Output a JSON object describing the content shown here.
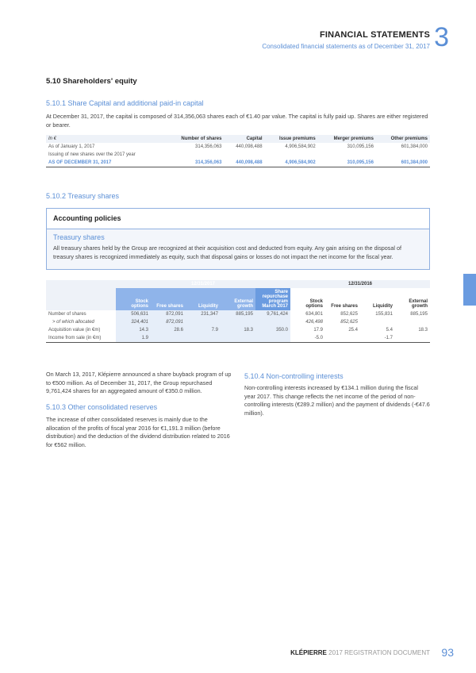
{
  "header": {
    "title": "FINANCIAL STATEMENTS",
    "subtitle": "Consolidated financial statements as of December 31, 2017",
    "chapter": "3"
  },
  "s510": {
    "title": "5.10  Shareholders' equity"
  },
  "s5101": {
    "title": "5.10.1  Share Capital and additional paid-in capital",
    "text": "At December 31, 2017, the capital is composed of 314,356,063 shares each of €1.40 par value. The capital is fully paid up. Shares are either registered or bearer."
  },
  "table1": {
    "headers": [
      "In €",
      "Number of shares",
      "Capital",
      "Issue premiums",
      "Merger premiums",
      "Other premiums"
    ],
    "rows": [
      [
        "As of January 1, 2017",
        "314,356,063",
        "440,098,488",
        "4,906,584,902",
        "310,095,156",
        "601,384,000"
      ],
      [
        "Issuing of new shares over the 2017 year",
        "",
        "",
        "",
        "",
        ""
      ]
    ],
    "total": [
      "AS OF DECEMBER 31, 2017",
      "314,356,063",
      "440,098,488",
      "4,906,584,902",
      "310,095,156",
      "601,384,000"
    ]
  },
  "s5102": {
    "title": "5.10.2  Treasury shares"
  },
  "policies": {
    "title": "Accounting policies",
    "subtitle": "Treasury shares",
    "text": "All treasury shares held by the Group are recognized at their acquisition cost and deducted from equity. Any gain arising on the disposal of treasury shares is recognized immediately as equity, such that disposal gains or losses do not impact the net income for the fiscal year."
  },
  "table2": {
    "period1": "12/31/2017",
    "period2": "12/31/2016",
    "headers": [
      "Stock options",
      "Free shares",
      "Liquidity",
      "External growth",
      "Share repurchase program March 2017",
      "Stock options",
      "Free shares",
      "Liquidity",
      "External growth"
    ],
    "rows": [
      [
        "Number of shares",
        "506,631",
        "872,091",
        "231,347",
        "885,195",
        "9,761,424",
        "634,801",
        "852,625",
        "155,831",
        "885,195"
      ],
      [
        "> of which allocated",
        "324,401",
        "872,091",
        "",
        "",
        "",
        "426,498",
        "852,625",
        "",
        ""
      ],
      [
        "Acquisition value (in €m)",
        "14.3",
        "28.6",
        "7.9",
        "18.3",
        "350.0",
        "17.9",
        "25.4",
        "5.4",
        "18.3"
      ],
      [
        "Income from sale (in €m)",
        "1.9",
        "",
        "",
        "",
        "",
        "-5.0",
        "",
        "-1.7",
        ""
      ]
    ]
  },
  "left": {
    "text1": "On March 13, 2017, Klépierre announced a share buyback program of up to €500 million. As of December 31, 2017, the Group repurchased 9,761,424 shares for an aggregated amount of €350.0 million.",
    "title": "5.10.3  Other consolidated reserves",
    "text2": "The increase of other consolidated reserves is mainly due to the allocation of the profits of fiscal year 2016 for €1,191.3 million (before distribution) and the deduction of the dividend distribution related to 2016 for €562 million."
  },
  "right": {
    "title": "5.10.4  Non-controlling interests",
    "text": "Non-controlling interests increased by €134.1 million during the fiscal year 2017. This change reflects the net income of the period of non-controlling interests (€289.2 million) and the payment of dividends (-€47.6 million)."
  },
  "footer": {
    "brand": "KLÉPIERRE",
    "doc": "2017 REGISTRATION DOCUMENT",
    "page": "93"
  },
  "colors": {
    "accent": "#5b8fd6"
  }
}
